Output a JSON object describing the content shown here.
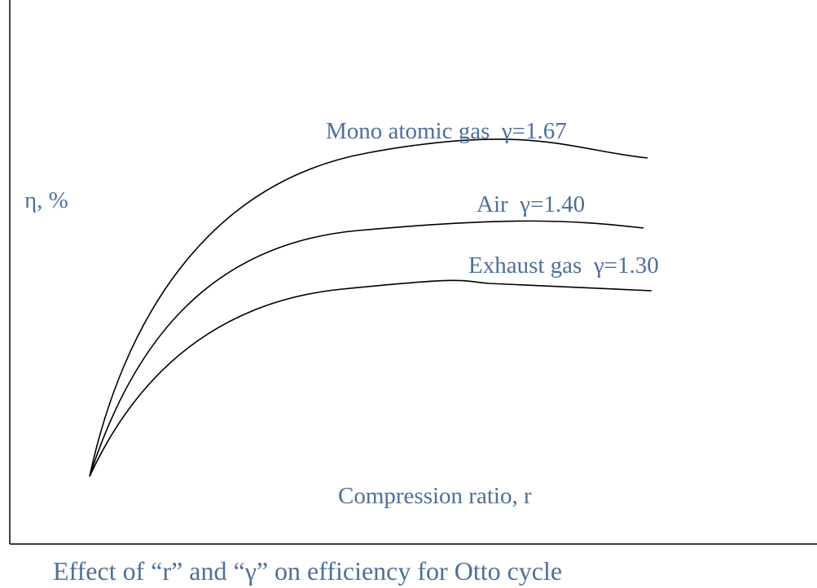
{
  "y_axis_label": "η, %",
  "x_axis_label": "Compression ratio, r",
  "curves": [
    {
      "label": "Mono atomic gas  γ=1.67"
    },
    {
      "label": "Air  γ=1.40"
    },
    {
      "label": "Exhaust gas  γ=1.30"
    }
  ],
  "caption": "Effect of “r” and “γ” on efficiency for Otto cycle"
}
